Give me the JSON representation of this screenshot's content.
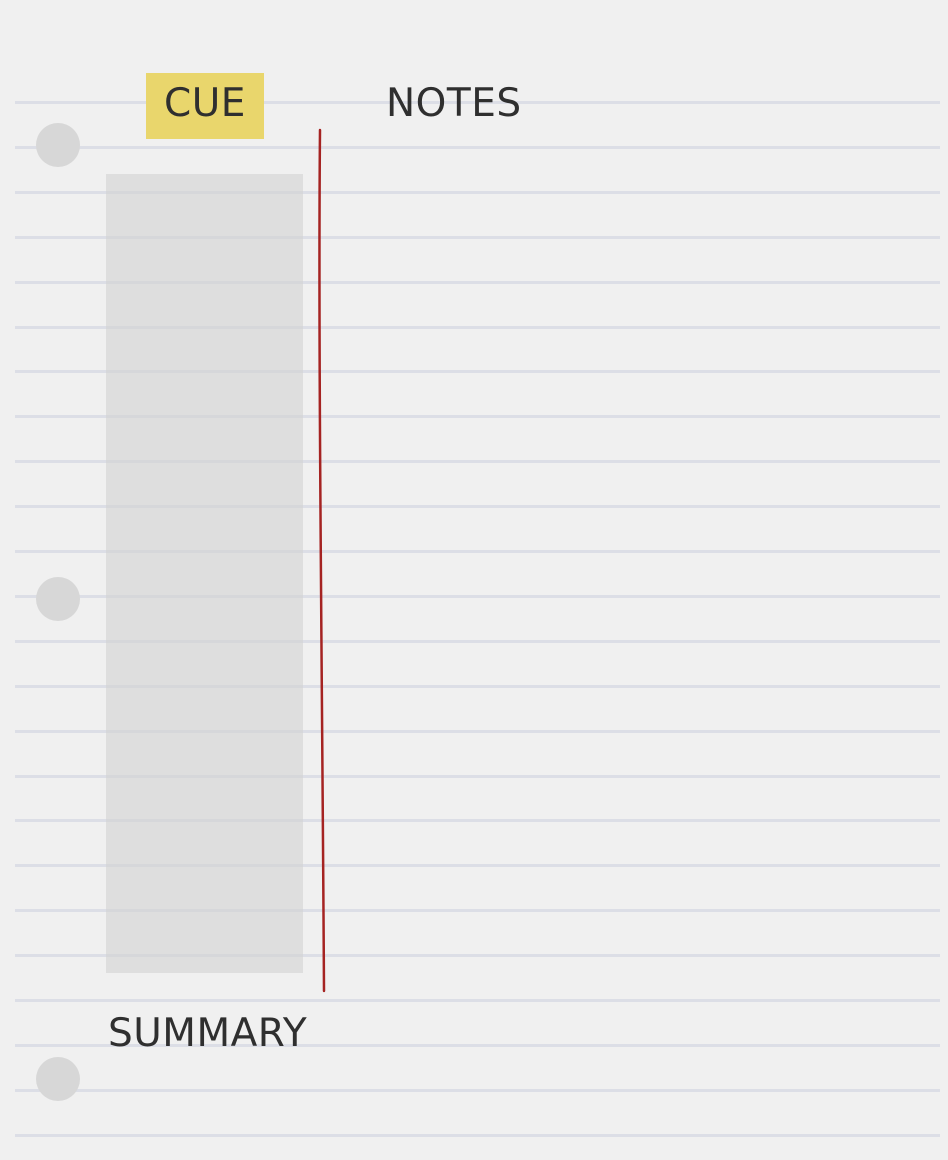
{
  "sections": {
    "cue": "CUE",
    "notes": "NOTES",
    "summary": "SUMMARY"
  },
  "colors": {
    "paper": "#f0f0f0",
    "rule_line": "#dcdee6",
    "cue_highlight": "#e9d66c",
    "margin_line": "#a52322",
    "cue_column": "#dadada",
    "punch_hole": "#d7d7d7"
  }
}
